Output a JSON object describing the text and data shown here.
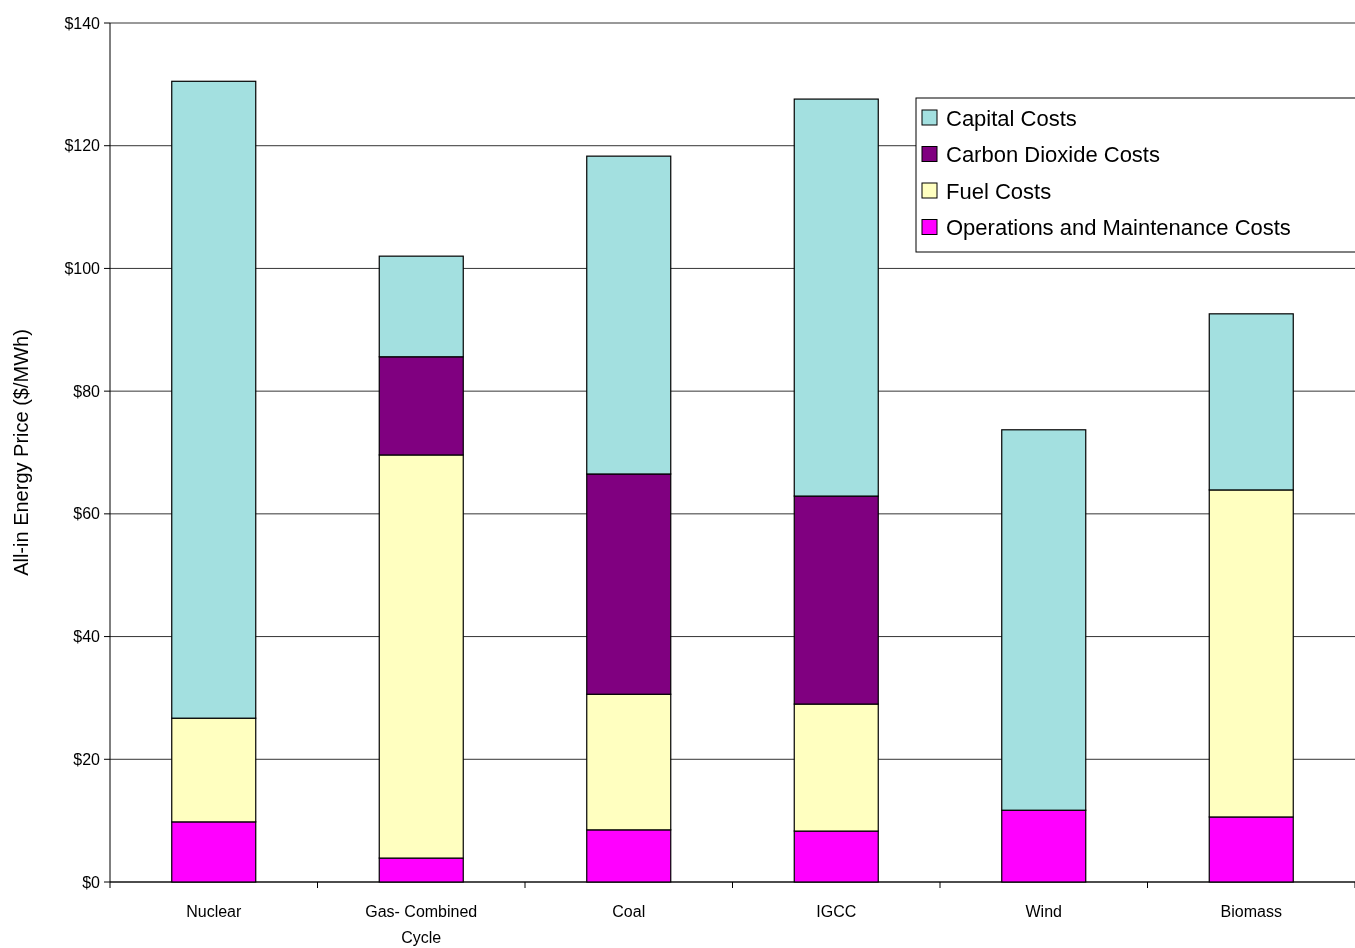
{
  "chart_data": {
    "type": "bar",
    "stacked": true,
    "ylabel": "All-in Energy Price ($/MWh)",
    "categories": [
      "Nuclear",
      "Gas- Combined Cycle",
      "Coal",
      "IGCC",
      "Wind",
      "Biomass"
    ],
    "series": [
      {
        "name": "Operations and Maintenance Costs",
        "color": "#ff00ff",
        "values": [
          9.8,
          3.9,
          8.5,
          8.3,
          11.7,
          10.6
        ]
      },
      {
        "name": "Fuel Costs",
        "color": "#ffffc0",
        "values": [
          16.9,
          65.7,
          22.1,
          20.7,
          null,
          53.3
        ]
      },
      {
        "name": "Carbon Dioxide Costs",
        "color": "#800080",
        "values": [
          null,
          16.0,
          35.9,
          33.9,
          null,
          null
        ]
      },
      {
        "name": "Capital Costs",
        "color": "#a3e0e0",
        "values": [
          103.8,
          16.4,
          51.8,
          64.7,
          62.0,
          28.7
        ]
      }
    ],
    "ylim": [
      0,
      140
    ],
    "yticks": [
      {
        "value": 0,
        "label": "$0"
      },
      {
        "value": 20,
        "label": "$20"
      },
      {
        "value": 40,
        "label": "$40"
      },
      {
        "value": 60,
        "label": "$60"
      },
      {
        "value": 80,
        "label": "$80"
      },
      {
        "value": 100,
        "label": "$100"
      },
      {
        "value": 120,
        "label": "$120"
      },
      {
        "value": 140,
        "label": "$140"
      }
    ],
    "grid": "y",
    "legend": "top right"
  }
}
